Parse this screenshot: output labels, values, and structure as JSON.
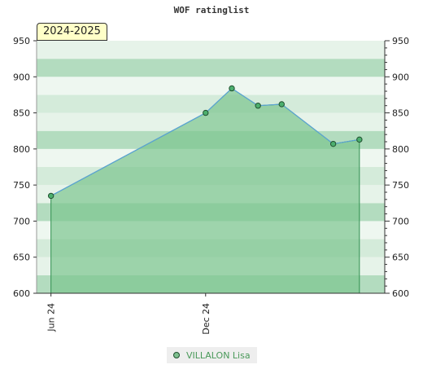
{
  "chart_data": {
    "type": "area",
    "title": "WOF ratinglist",
    "badge": "2024-2025",
    "x_ticks": [
      {
        "date": "2024-06-01",
        "label": "Jun 24"
      },
      {
        "date": "2024-12-01",
        "label": "Dec 24"
      }
    ],
    "x_range": [
      "2024-05-15",
      "2025-07-01"
    ],
    "ylim": [
      600,
      950
    ],
    "y_ticks": [
      600,
      650,
      700,
      750,
      800,
      850,
      900,
      950
    ],
    "series": [
      {
        "name": "VILLALON Lisa",
        "points": [
          {
            "x": "2024-06-01",
            "y": 735
          },
          {
            "x": "2024-12-01",
            "y": 850
          },
          {
            "x": "2025-01-01",
            "y": 884
          },
          {
            "x": "2025-02-01",
            "y": 860
          },
          {
            "x": "2025-03-01",
            "y": 862
          },
          {
            "x": "2025-05-01",
            "y": 807
          },
          {
            "x": "2025-06-01",
            "y": 813
          }
        ]
      }
    ],
    "grid": true,
    "legend_position": "bottom",
    "colors": {
      "area_fill": "#7cc48f",
      "line": "#5ba3d6",
      "marker_fill": "#4caf6e",
      "marker_stroke": "#1f4f2f",
      "legend_text": "#4a9a5a",
      "badge_bg": "#ffffc8"
    }
  }
}
